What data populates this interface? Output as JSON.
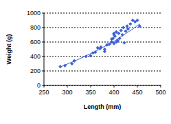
{
  "chart_data": {
    "type": "scatter",
    "x_label": "Length (mm)",
    "y_label": "Weight (g)",
    "xlim": [
      250,
      500
    ],
    "xticks": [
      250,
      300,
      350,
      400,
      450,
      500
    ],
    "ylim": [
      0,
      1000
    ],
    "yticks": [
      0,
      200,
      400,
      600,
      800,
      1000
    ],
    "grid": true,
    "series": [
      {
        "type": "scatter",
        "marker": "diamond",
        "color": "#3a62d6",
        "x": [
          285,
          295,
          310,
          315,
          340,
          350,
          355,
          360,
          365,
          370,
          372,
          380,
          380,
          385,
          390,
          395,
          395,
          398,
          400,
          400,
          400,
          402,
          405,
          405,
          408,
          410,
          412,
          415,
          418,
          420,
          422,
          425,
          428,
          430,
          435,
          440,
          445,
          450,
          455
        ],
        "values": [
          260,
          275,
          300,
          340,
          400,
          410,
          450,
          460,
          520,
          510,
          530,
          470,
          500,
          560,
          570,
          600,
          640,
          650,
          700,
          720,
          580,
          680,
          740,
          600,
          620,
          720,
          650,
          760,
          700,
          800,
          590,
          750,
          820,
          780,
          850,
          900,
          880,
          900,
          820
        ]
      },
      {
        "type": "line",
        "line_style": "solid",
        "color": "#3a62d6",
        "x": [
          285,
          320,
          360,
          400,
          440,
          455
        ],
        "values": [
          255,
          350,
          470,
          610,
          780,
          850
        ]
      }
    ]
  }
}
